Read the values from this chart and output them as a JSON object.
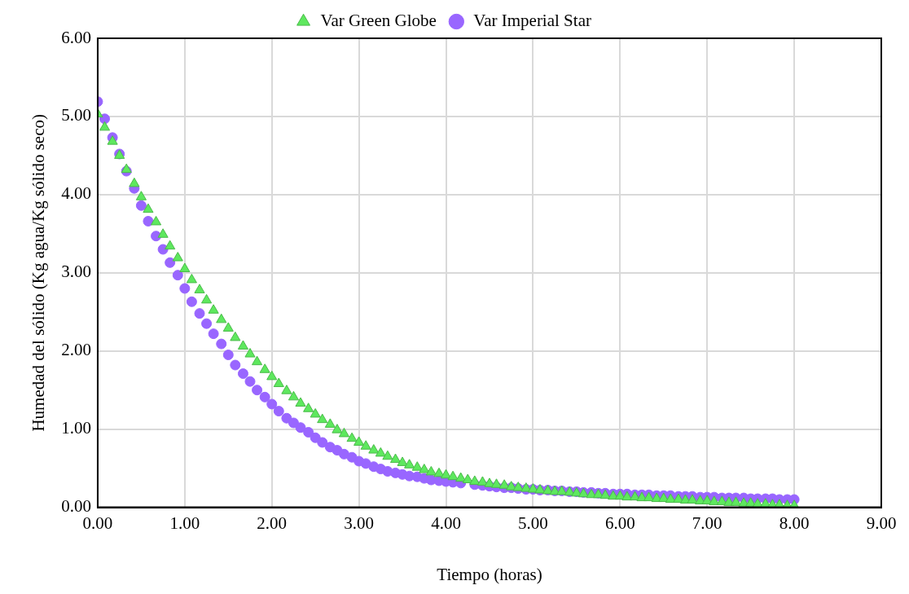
{
  "chart_data": {
    "type": "scatter",
    "xlabel": "Tiempo (horas)",
    "ylabel": "Humedad del sólido (Kg agua/Kg sólido seco)",
    "x": [
      0,
      0.08,
      0.17,
      0.25,
      0.33,
      0.42,
      0.5,
      0.58,
      0.67,
      0.75,
      0.83,
      0.92,
      1.0,
      1.08,
      1.17,
      1.25,
      1.33,
      1.42,
      1.5,
      1.58,
      1.67,
      1.75,
      1.83,
      1.92,
      2.0,
      2.08,
      2.17,
      2.25,
      2.33,
      2.42,
      2.5,
      2.58,
      2.67,
      2.75,
      2.83,
      2.92,
      3.0,
      3.08,
      3.17,
      3.25,
      3.33,
      3.42,
      3.5,
      3.58,
      3.67,
      3.75,
      3.83,
      3.92,
      4.0,
      4.08,
      4.17,
      4.25,
      4.33,
      4.42,
      4.5,
      4.58,
      4.67,
      4.75,
      4.83,
      4.92,
      5.0,
      5.08,
      5.17,
      5.25,
      5.33,
      5.42,
      5.5,
      5.58,
      5.67,
      5.75,
      5.83,
      5.92,
      6.0,
      6.08,
      6.17,
      6.25,
      6.33,
      6.42,
      6.5,
      6.58,
      6.67,
      6.75,
      6.83,
      6.92,
      7.0,
      7.08,
      7.17,
      7.25,
      7.33,
      7.42,
      7.5,
      7.58,
      7.67,
      7.75,
      7.83,
      7.92,
      8.0
    ],
    "series": [
      {
        "name": "Var Green Globe",
        "color": "#5ee85e",
        "marker": "triangle",
        "values": [
          5.03,
          4.86,
          4.68,
          4.5,
          4.32,
          4.14,
          3.97,
          3.81,
          3.65,
          3.49,
          3.34,
          3.19,
          3.05,
          2.91,
          2.78,
          2.65,
          2.52,
          2.4,
          2.29,
          2.17,
          2.06,
          1.96,
          1.86,
          1.76,
          1.67,
          1.58,
          1.49,
          1.41,
          1.33,
          1.26,
          1.19,
          1.12,
          1.06,
          0.99,
          0.94,
          0.88,
          0.83,
          0.78,
          0.73,
          0.69,
          0.65,
          0.61,
          0.57,
          0.54,
          0.51,
          0.48,
          0.45,
          0.43,
          0.41,
          0.39,
          0.37,
          0.35,
          0.33,
          0.32,
          0.3,
          0.29,
          0.28,
          0.26,
          0.25,
          0.24,
          0.23,
          0.22,
          0.21,
          0.2,
          0.2,
          0.19,
          0.18,
          0.17,
          0.16,
          0.16,
          0.15,
          0.14,
          0.14,
          0.13,
          0.13,
          0.12,
          0.12,
          0.11,
          0.11,
          0.1,
          0.1,
          0.09,
          0.09,
          0.08,
          0.08,
          0.07,
          0.07,
          0.06,
          0.06,
          0.05,
          0.05,
          0.04,
          0.04,
          0.03,
          0.03,
          0.02,
          0.02
        ]
      },
      {
        "name": "Var Imperial Star",
        "color": "#9966ff",
        "marker": "circle",
        "values": [
          5.19,
          4.97,
          4.73,
          4.52,
          4.3,
          4.08,
          3.86,
          3.66,
          3.47,
          3.3,
          3.13,
          2.97,
          2.8,
          2.63,
          2.48,
          2.35,
          2.22,
          2.09,
          1.95,
          1.82,
          1.71,
          1.61,
          1.5,
          1.41,
          1.32,
          1.23,
          1.14,
          1.08,
          1.02,
          0.96,
          0.89,
          0.83,
          0.77,
          0.73,
          0.68,
          0.64,
          0.59,
          0.56,
          0.52,
          0.49,
          0.46,
          0.44,
          0.42,
          0.4,
          0.39,
          0.37,
          0.35,
          0.34,
          0.33,
          0.32,
          0.31,
          null,
          0.29,
          0.28,
          0.27,
          0.26,
          0.25,
          0.25,
          0.24,
          0.23,
          0.23,
          0.22,
          0.22,
          0.21,
          0.21,
          0.2,
          0.2,
          0.19,
          0.19,
          0.18,
          0.18,
          0.17,
          0.17,
          0.17,
          0.16,
          0.16,
          0.16,
          0.15,
          0.15,
          0.15,
          0.14,
          0.14,
          0.14,
          0.13,
          0.13,
          0.13,
          0.12,
          0.12,
          0.12,
          0.12,
          0.11,
          0.11,
          0.11,
          0.11,
          0.1,
          0.1,
          0.1
        ]
      }
    ],
    "xlim": [
      0,
      9
    ],
    "ylim": [
      0,
      6
    ],
    "xticks": [
      {
        "value": 0,
        "label": "0.00"
      },
      {
        "value": 1,
        "label": "1.00"
      },
      {
        "value": 2,
        "label": "2.00"
      },
      {
        "value": 3,
        "label": "3.00"
      },
      {
        "value": 4,
        "label": "4.00"
      },
      {
        "value": 5,
        "label": "5.00"
      },
      {
        "value": 6,
        "label": "6.00"
      },
      {
        "value": 7,
        "label": "7.00"
      },
      {
        "value": 8,
        "label": "8.00"
      },
      {
        "value": 9,
        "label": "9.00"
      }
    ],
    "yticks": [
      {
        "value": 0,
        "label": "0.00"
      },
      {
        "value": 1,
        "label": "1.00"
      },
      {
        "value": 2,
        "label": "2.00"
      },
      {
        "value": 3,
        "label": "3.00"
      },
      {
        "value": 4,
        "label": "4.00"
      },
      {
        "value": 5,
        "label": "5.00"
      },
      {
        "value": 6,
        "label": "6.00"
      }
    ],
    "grid": true,
    "legend": "top"
  }
}
